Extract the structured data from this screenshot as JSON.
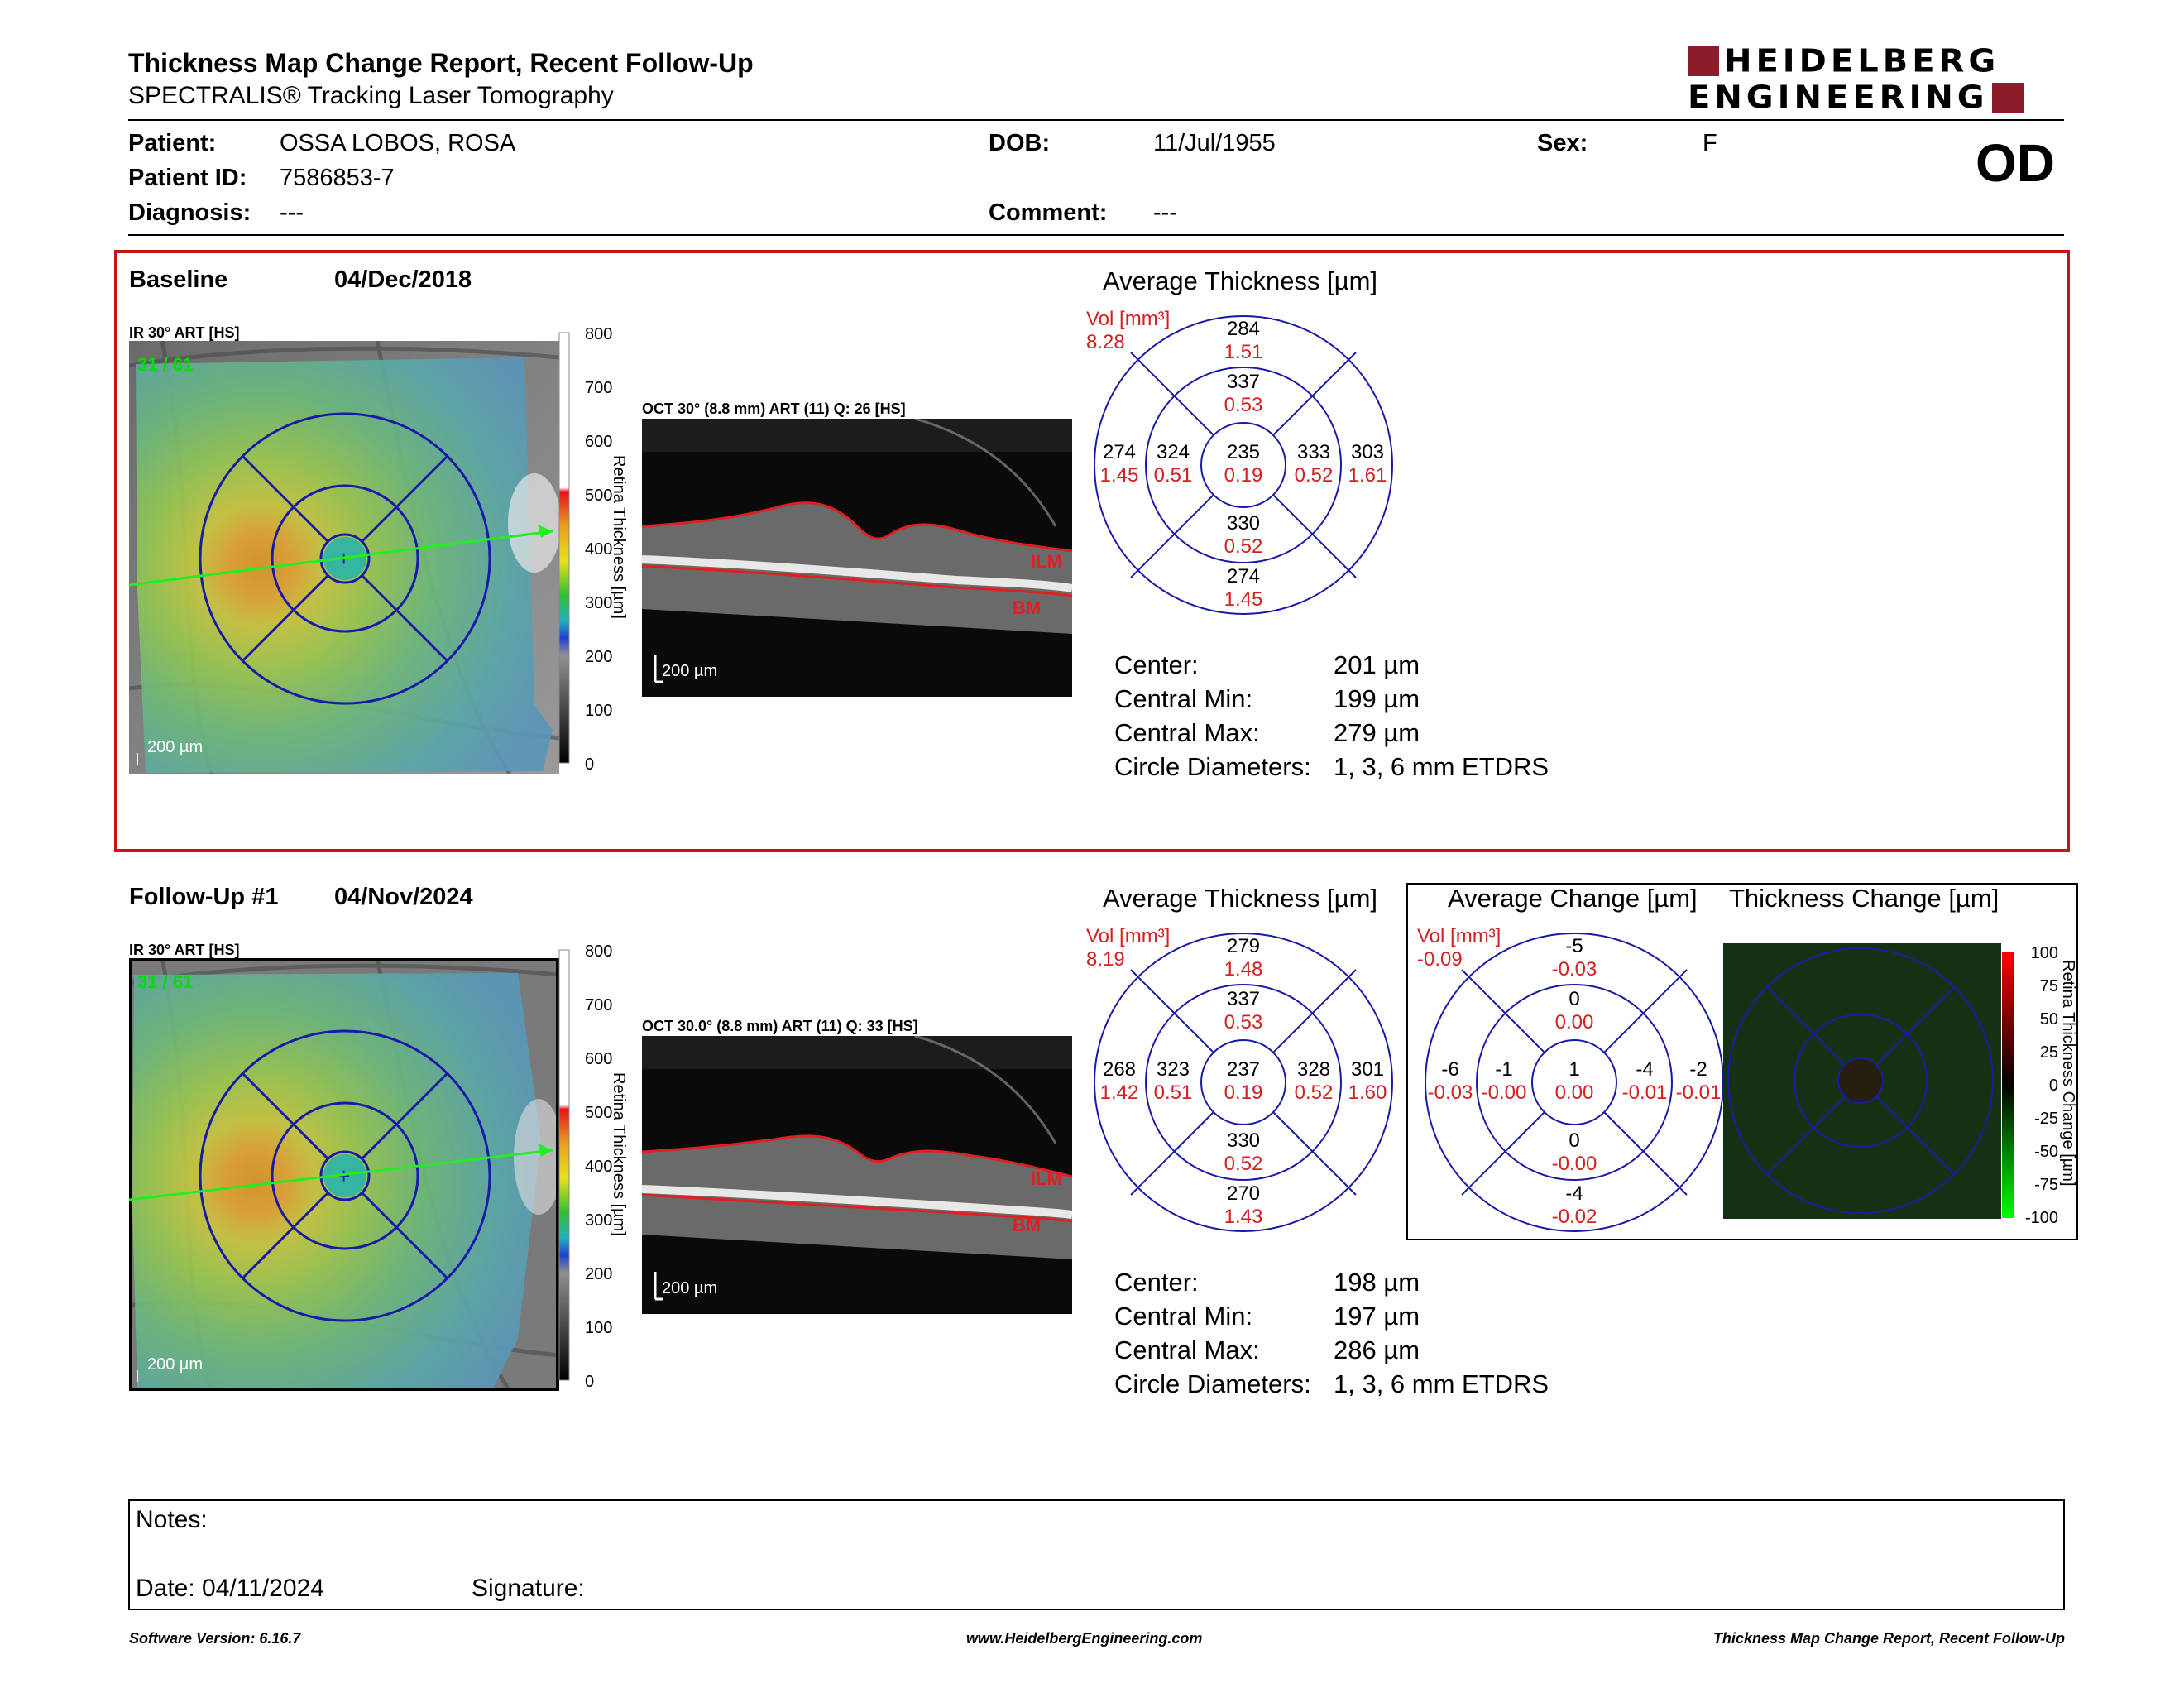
{
  "header": {
    "title": "Thickness Map Change Report, Recent Follow-Up",
    "subtitle": "SPECTRALIS® Tracking Laser Tomography",
    "logo_line1": "HEIDELBERG",
    "logo_line2": "ENGINEERING",
    "eye": "OD"
  },
  "patient": {
    "patient_label": "Patient:",
    "patient_value": "OSSA LOBOS, ROSA",
    "id_label": "Patient ID:",
    "id_value": "7586853-7",
    "diagnosis_label": "Diagnosis:",
    "diagnosis_value": "---",
    "dob_label": "DOB:",
    "dob_value": "11/Jul/1955",
    "comment_label": "Comment:",
    "comment_value": "---",
    "sex_label": "Sex:",
    "sex_value": "F"
  },
  "baseline": {
    "label": "Baseline",
    "date": "04/Dec/2018",
    "ir_label": "IR 30° ART [HS]",
    "ir_corner_text": "31 / 61",
    "ir_scale": "200 µm",
    "oct_label": "OCT 30° (8.8 mm) ART (11) Q: 26 [HS]",
    "oct_scale": "200 µm",
    "avg_title": "Average Thickness [µm]",
    "vol_label": "Vol [mm³]",
    "vol_total": "8.28",
    "center_label": "Center:",
    "center_value": "201 µm",
    "cmin_label": "Central Min:",
    "cmin_value": "199 µm",
    "cmax_label": "Central Max:",
    "cmax_value": "279 µm",
    "circ_label": "Circle Diameters:",
    "circ_value": "1, 3, 6 mm ETDRS",
    "etdrs": {
      "center": {
        "t": "235",
        "v": "0.19"
      },
      "inner_sup": {
        "t": "337",
        "v": "0.53"
      },
      "inner_inf": {
        "t": "330",
        "v": "0.52"
      },
      "inner_temp": {
        "t": "324",
        "v": "0.51"
      },
      "inner_nasal": {
        "t": "333",
        "v": "0.52"
      },
      "outer_sup": {
        "t": "284",
        "v": "1.51"
      },
      "outer_inf": {
        "t": "274",
        "v": "1.45"
      },
      "outer_temp": {
        "t": "274",
        "v": "1.45"
      },
      "outer_nasal": {
        "t": "303",
        "v": "1.61"
      }
    }
  },
  "followup": {
    "label": "Follow-Up #1",
    "date": "04/Nov/2024",
    "ir_label": "IR 30° ART [HS]",
    "ir_corner_text": "31 / 61",
    "ir_scale": "200 µm",
    "oct_label": "OCT 30.0° (8.8 mm) ART (11) Q: 33 [HS]",
    "oct_scale": "200 µm",
    "avg_title": "Average Thickness [µm]",
    "vol_label": "Vol [mm³]",
    "vol_total": "8.19",
    "center_label": "Center:",
    "center_value": "198 µm",
    "cmin_label": "Central Min:",
    "cmin_value": "197 µm",
    "cmax_label": "Central Max:",
    "cmax_value": "286 µm",
    "circ_label": "Circle Diameters:",
    "circ_value": "1, 3, 6 mm ETDRS",
    "etdrs": {
      "center": {
        "t": "237",
        "v": "0.19"
      },
      "inner_sup": {
        "t": "337",
        "v": "0.53"
      },
      "inner_inf": {
        "t": "330",
        "v": "0.52"
      },
      "inner_temp": {
        "t": "323",
        "v": "0.51"
      },
      "inner_nasal": {
        "t": "328",
        "v": "0.52"
      },
      "outer_sup": {
        "t": "279",
        "v": "1.48"
      },
      "outer_inf": {
        "t": "270",
        "v": "1.43"
      },
      "outer_temp": {
        "t": "268",
        "v": "1.42"
      },
      "outer_nasal": {
        "t": "301",
        "v": "1.60"
      }
    },
    "change_title": "Average Change [µm]",
    "change_vol_label": "Vol [mm³]",
    "change_vol_total": "-0.09",
    "change": {
      "center": {
        "t": "1",
        "v": "0.00"
      },
      "inner_sup": {
        "t": "0",
        "v": "0.00"
      },
      "inner_inf": {
        "t": "0",
        "v": "-0.00"
      },
      "inner_temp": {
        "t": "-1",
        "v": "-0.00"
      },
      "inner_nasal": {
        "t": "-4",
        "v": "-0.01"
      },
      "outer_sup": {
        "t": "-5",
        "v": "-0.03"
      },
      "outer_inf": {
        "t": "-4",
        "v": "-0.02"
      },
      "outer_temp": {
        "t": "-6",
        "v": "-0.03"
      },
      "outer_nasal": {
        "t": "-2",
        "v": "-0.01"
      }
    },
    "thickness_change_title": "Thickness Change [µm]"
  },
  "thickness_scale": {
    "ticks": [
      "800",
      "700",
      "600",
      "500",
      "400",
      "300",
      "200",
      "100",
      "0"
    ],
    "axis_label": "Retina Thickness [µm]"
  },
  "change_scale": {
    "ticks": [
      "100",
      "75",
      "50",
      "25",
      "0",
      "-25",
      "-50",
      "-75",
      "-100"
    ],
    "axis_label": "Retina Thickness Change [µm]"
  },
  "oct_markers": {
    "ilm": "ILM",
    "bm": "BM"
  },
  "notes": {
    "notes_label": "Notes:",
    "date_label": "Date: 04/11/2024",
    "signature_label": "Signature:"
  },
  "footer": {
    "left": "Software Version: 6.16.7",
    "center": "www.HeidelbergEngineering.com",
    "right": "Thickness Map Change Report, Recent Follow-Up"
  },
  "colors": {
    "accent_red": "#d42020",
    "frame_red": "#c0141c",
    "logo_red": "#8c1c2a",
    "etdrs_blue": "#1a1aa8"
  }
}
